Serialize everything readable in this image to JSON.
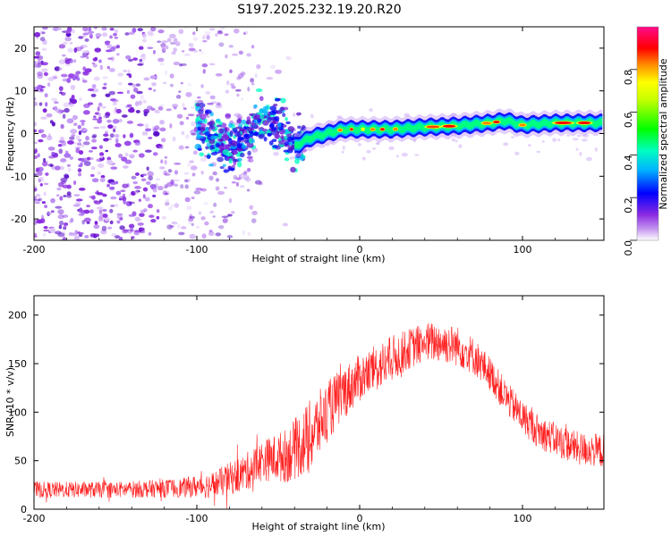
{
  "title": "S197.2025.232.19.20.R20",
  "chart_data": [
    {
      "type": "heatmap",
      "title": "S197.2025.232.19.20.R20",
      "xlabel": "Height of straight line (km)",
      "ylabel": "Frequency (Hz)",
      "xlim": [
        -200,
        150
      ],
      "ylim": [
        -25,
        25
      ],
      "x_ticks": [
        -200,
        -100,
        0,
        100
      ],
      "x_tick_labels": [
        "-200",
        "-100",
        "0",
        "100"
      ],
      "y_ticks": [
        -20,
        -10,
        0,
        10,
        20
      ],
      "y_tick_labels": [
        "-20",
        "-10",
        "0",
        "10",
        "20"
      ],
      "colorbar": {
        "label": "Normalized spectral amplitude",
        "range": [
          0,
          1
        ],
        "ticks": [
          0.0,
          0.2,
          0.4,
          0.6,
          0.8
        ],
        "tick_labels": [
          "0.0",
          "0.2",
          "0.4",
          "0.6",
          "0.8"
        ],
        "colormap": [
          "#ffffff",
          "#8a2be2",
          "#0000ff",
          "#00ffff",
          "#00ff00",
          "#ffff00",
          "#ff8000",
          "#ff0000",
          "#ff00a0"
        ]
      },
      "ridge": {
        "description": "narrow high-amplitude frequency ridge",
        "points": [
          {
            "x": -100,
            "y": 3
          },
          {
            "x": -90,
            "y": -1
          },
          {
            "x": -80,
            "y": -3
          },
          {
            "x": -70,
            "y": -1
          },
          {
            "x": -60,
            "y": 3
          },
          {
            "x": -50,
            "y": 2
          },
          {
            "x": -40,
            "y": -3
          },
          {
            "x": -35,
            "y": -2
          },
          {
            "x": -30,
            "y": -1
          },
          {
            "x": -20,
            "y": 0
          },
          {
            "x": -10,
            "y": 1
          },
          {
            "x": 0,
            "y": 1
          },
          {
            "x": 10,
            "y": 1
          },
          {
            "x": 20,
            "y": 1
          },
          {
            "x": 40,
            "y": 1.5
          },
          {
            "x": 60,
            "y": 1.8
          },
          {
            "x": 80,
            "y": 2.5
          },
          {
            "x": 90,
            "y": 3
          },
          {
            "x": 100,
            "y": 2
          },
          {
            "x": 120,
            "y": 2.5
          },
          {
            "x": 150,
            "y": 2.5
          }
        ]
      },
      "noise_region": {
        "x_from": -200,
        "x_to": -60,
        "color": "#8a2be2"
      }
    },
    {
      "type": "line",
      "xlabel": "Height of straight line (km)",
      "ylabel": "SNR (10 * v/v)",
      "xlim": [
        -200,
        150
      ],
      "ylim": [
        0,
        220
      ],
      "x_ticks": [
        -200,
        -100,
        0,
        100
      ],
      "x_tick_labels": [
        "-200",
        "-100",
        "0",
        "100"
      ],
      "y_ticks": [
        0,
        50,
        100,
        150,
        200
      ],
      "y_tick_labels": [
        "0",
        "50",
        "100",
        "150",
        "200"
      ],
      "series": [
        {
          "name": "SNR",
          "color": "#ff2020",
          "envelope": [
            {
              "x": -200,
              "mean": 20,
              "spread": 12
            },
            {
              "x": -150,
              "mean": 20,
              "spread": 12
            },
            {
              "x": -110,
              "mean": 22,
              "spread": 14
            },
            {
              "x": -90,
              "mean": 25,
              "spread": 20
            },
            {
              "x": -70,
              "mean": 38,
              "spread": 28
            },
            {
              "x": -60,
              "mean": 50,
              "spread": 30
            },
            {
              "x": -45,
              "mean": 55,
              "spread": 40
            },
            {
              "x": -30,
              "mean": 75,
              "spread": 55
            },
            {
              "x": -20,
              "mean": 100,
              "spread": 45
            },
            {
              "x": -10,
              "mean": 120,
              "spread": 40
            },
            {
              "x": 0,
              "mean": 135,
              "spread": 35
            },
            {
              "x": 10,
              "mean": 145,
              "spread": 35
            },
            {
              "x": 20,
              "mean": 155,
              "spread": 35
            },
            {
              "x": 30,
              "mean": 165,
              "spread": 30
            },
            {
              "x": 40,
              "mean": 172,
              "spread": 30
            },
            {
              "x": 50,
              "mean": 172,
              "spread": 30
            },
            {
              "x": 60,
              "mean": 168,
              "spread": 30
            },
            {
              "x": 70,
              "mean": 158,
              "spread": 28
            },
            {
              "x": 80,
              "mean": 140,
              "spread": 25
            },
            {
              "x": 90,
              "mean": 115,
              "spread": 25
            },
            {
              "x": 100,
              "mean": 95,
              "spread": 25
            },
            {
              "x": 110,
              "mean": 80,
              "spread": 25
            },
            {
              "x": 120,
              "mean": 72,
              "spread": 25
            },
            {
              "x": 135,
              "mean": 62,
              "spread": 25
            },
            {
              "x": 150,
              "mean": 60,
              "spread": 25
            }
          ]
        }
      ]
    }
  ]
}
